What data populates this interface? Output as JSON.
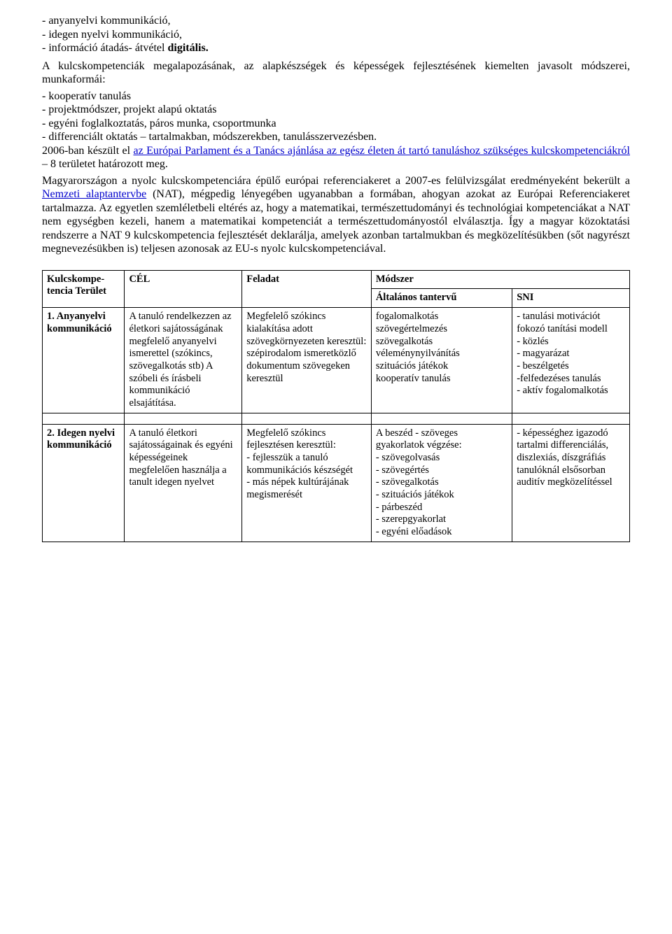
{
  "bullets": {
    "b1_pre": "- anyanyelvi kommunikáció,",
    "b2_pre": "- idegen nyelvi kommunikáció,",
    "b3_pre": "- információ átadás- átvétel ",
    "b3_bold": "digitális."
  },
  "intro": {
    "p1": "A kulcskompetenciák megalapozásának, az alapkészségek és képességek fejlesztésének kiemelten javasolt módszerei, munkaformái:",
    "l1": "- kooperatív tanulás",
    "l2": "- projektmódszer, projekt alapú oktatás",
    "l3": "- egyéni foglalkoztatás, páros munka, csoportmunka",
    "l4": "- differenciált oktatás – tartalmakban, módszerekben, tanulásszervezésben."
  },
  "p2": {
    "pre": "2006-ban készült el ",
    "link": "az Európai Parlament és a Tanács ajánlása az egész életen át tartó tanuláshoz szükséges kulcskompetenciákról",
    "post": " – 8 területet határozott meg."
  },
  "p3": {
    "pre": "Magyarországon a nyolc kulcskompetenciára épülő európai referenciakeret a 2007-es felülvizsgálat eredményeként bekerült a ",
    "link": "Nemzeti alaptantervbe",
    "post": " (NAT), mégpedig lényegében ugyanabban a formában, ahogyan azokat az Európai Referenciakeret tartalmazza. Az egyetlen szemléletbeli eltérés az, hogy a matematikai, természettudományi és technológiai kompetenciákat a NAT nem egységben kezeli, hanem a matematikai kompetenciát a természettudományostól elválasztja. Így a magyar közoktatási rendszerre a NAT 9 kulcskompetencia fejlesztését deklarálja, amelyek azonban tartalmukban és megközelítésükben (sőt nagyrészt megnevezésükben is) teljesen azonosak az EU-s nyolc kulcskompetenciával."
  },
  "table": {
    "headers": {
      "area": "Kulcskompe-tencia Terület",
      "cel": "CÉL",
      "task": "Feladat",
      "method": "Módszer",
      "general": "Általános tantervű",
      "sni": "SNI"
    },
    "row1": {
      "area": "1. Anyanyelvi kommunikáció",
      "cel": "A tanuló rendelkezzen az életkori sajátosságának megfelelő anyanyelvi ismerettel (szókincs, szövegalkotás stb) A szóbeli és írásbeli kommunikáció elsajátítása.",
      "task": "Megfelelő szókincs kialakítása adott szövegkörnyezeten keresztül: szépirodalom ismeretközlő dokumentum szövegeken keresztül",
      "general": "fogalomalkotás\nszövegértelmezés\nszövegalkotás\nvéleménynyilvánítás\nszituációs játékok\nkooperatív tanulás",
      "sni": "- tanulási motivációt fokozó tanítási modell\n- közlés\n- magyarázat\n- beszélgetés\n-felfedezéses tanulás\n- aktív fogalomalkotás"
    },
    "row2": {
      "area": "2. Idegen nyelvi kommunikáció",
      "cel": "A tanuló életkori sajátosságainak és egyéni képességeinek megfelelően használja a tanult idegen nyelvet",
      "task": "Megfelelő szókincs fejlesztésen keresztül:\n- fejlesszük a tanuló kommunikációs készségét\n- más népek kultúrájának megismerését",
      "general": "A beszéd - szöveges gyakorlatok végzése:\n- szövegolvasás\n- szövegértés\n- szövegalkotás\n- szituációs játékok\n- párbeszéd\n- szerepgyakorlat\n- egyéni előadások",
      "sni": "- képességhez igazodó tartalmi differenciálás, diszlexiás, díszgráfiás tanulóknál elsősorban auditív megközelítéssel"
    }
  }
}
